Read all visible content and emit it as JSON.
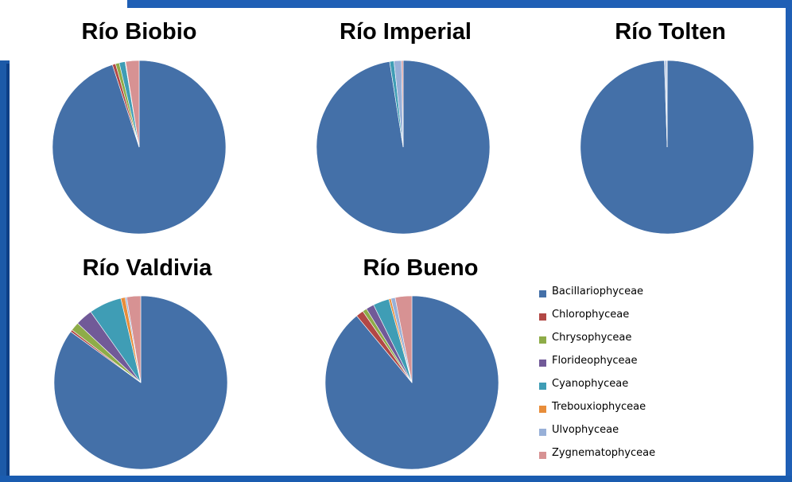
{
  "chart_data": [
    {
      "type": "pie",
      "title": "Río Biobio",
      "categories": [
        "Bacillariophyceae",
        "Chlorophyceae",
        "Chrysophyceae",
        "Florideophyceae",
        "Cyanophyceae",
        "Trebouxiophyceae",
        "Ulvophyceae",
        "Zygnematophyceae"
      ],
      "values": [
        95.0,
        0.6,
        0.7,
        0.0,
        1.1,
        0.0,
        0.1,
        2.5
      ]
    },
    {
      "type": "pie",
      "title": "Río Imperial",
      "categories": [
        "Bacillariophyceae",
        "Chlorophyceae",
        "Chrysophyceae",
        "Florideophyceae",
        "Cyanophyceae",
        "Trebouxiophyceae",
        "Ulvophyceae",
        "Zygnematophyceae"
      ],
      "values": [
        97.5,
        0.0,
        0.0,
        0.0,
        0.8,
        0.0,
        1.4,
        0.3
      ]
    },
    {
      "type": "pie",
      "title": "Río Tolten",
      "categories": [
        "Bacillariophyceae",
        "Chlorophyceae",
        "Chrysophyceae",
        "Florideophyceae",
        "Cyanophyceae",
        "Trebouxiophyceae",
        "Ulvophyceae",
        "Zygnematophyceae"
      ],
      "values": [
        99.5,
        0.0,
        0.0,
        0.0,
        0.1,
        0.0,
        0.3,
        0.1
      ]
    },
    {
      "type": "pie",
      "title": "Río Valdivia",
      "categories": [
        "Bacillariophyceae",
        "Chlorophyceae",
        "Chrysophyceae",
        "Florideophyceae",
        "Cyanophyceae",
        "Trebouxiophyceae",
        "Ulvophyceae",
        "Zygnematophyceae"
      ],
      "values": [
        85.0,
        0.4,
        1.6,
        3.2,
        6.1,
        0.8,
        0.3,
        2.6
      ]
    },
    {
      "type": "pie",
      "title": "Río Bueno",
      "categories": [
        "Bacillariophyceae",
        "Chlorophyceae",
        "Chrysophyceae",
        "Florideophyceae",
        "Cyanophyceae",
        "Trebouxiophyceae",
        "Ulvophyceae",
        "Zygnematophyceae"
      ],
      "values": [
        89.0,
        1.4,
        0.8,
        1.5,
        3.0,
        0.4,
        0.8,
        3.1
      ]
    }
  ],
  "legend": {
    "placement": "bottom-right",
    "entries": [
      {
        "label": "Bacillariophyceae",
        "color": "#4470a8"
      },
      {
        "label": "Chlorophyceae",
        "color": "#b24845"
      },
      {
        "label": "Chrysophyceae",
        "color": "#8eac48"
      },
      {
        "label": "Florideophyceae",
        "color": "#715a98"
      },
      {
        "label": "Cyanophyceae",
        "color": "#3f9db5"
      },
      {
        "label": "Trebouxiophyceae",
        "color": "#e88d3a"
      },
      {
        "label": "Ulvophyceae",
        "color": "#98b0d8"
      },
      {
        "label": "Zygnematophyceae",
        "color": "#d79293"
      }
    ]
  },
  "frame_color": "#1f5fb5"
}
